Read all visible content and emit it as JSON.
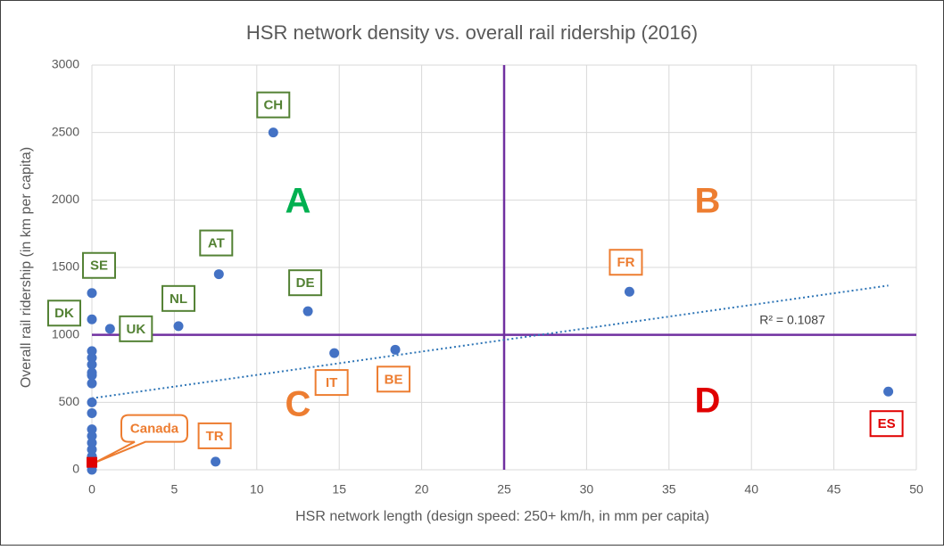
{
  "chart_data": {
    "type": "scatter",
    "title": "HSR network density vs. overall rail ridership (2016)",
    "x_label": "HSR network length (design speed: 250+ km/h, in mm per capita)",
    "y_label": "Overall rail ridership (in km per capita)",
    "xlim": [
      0,
      50
    ],
    "ylim": [
      0,
      3000
    ],
    "xticks": [
      0,
      5,
      10,
      15,
      20,
      25,
      30,
      35,
      40,
      45,
      50
    ],
    "yticks": [
      0,
      500,
      1000,
      1500,
      2000,
      2500,
      3000
    ],
    "grid": true,
    "color": "#4472c4",
    "points": {
      "x": [
        0,
        0,
        0,
        0,
        0,
        0,
        0,
        0,
        0,
        0,
        0,
        0,
        0,
        0,
        0
      ],
      "y": [
        880,
        830,
        780,
        720,
        700,
        640,
        500,
        420,
        300,
        250,
        200,
        150,
        100,
        50,
        0
      ]
    },
    "labeled_points": [
      {
        "label": "CH",
        "x": 11.0,
        "y": 2500,
        "label_color": "#548235"
      },
      {
        "label": "AT",
        "x": 7.7,
        "y": 1450,
        "label_color": "#548235"
      },
      {
        "label": "SE",
        "x": 0,
        "y": 1310,
        "label_color": "#548235"
      },
      {
        "label": "DK",
        "x": 0,
        "y": 1115,
        "label_color": "#548235"
      },
      {
        "label": "UK",
        "x": 1.1,
        "y": 1045,
        "label_color": "#548235"
      },
      {
        "label": "NL",
        "x": 5.25,
        "y": 1065,
        "label_color": "#548235"
      },
      {
        "label": "DE",
        "x": 13.1,
        "y": 1175,
        "label_color": "#548235"
      },
      {
        "label": "IT",
        "x": 14.7,
        "y": 865,
        "label_color": "#ed7d31"
      },
      {
        "label": "BE",
        "x": 18.4,
        "y": 890,
        "label_color": "#ed7d31"
      },
      {
        "label": "FR",
        "x": 32.6,
        "y": 1320,
        "label_color": "#ed7d31"
      },
      {
        "label": "ES",
        "x": 48.3,
        "y": 580,
        "label_color": "#e00000"
      },
      {
        "label": "TR",
        "x": 7.5,
        "y": 60,
        "label_color": "#ed7d31"
      },
      {
        "label": "Canada",
        "x": 0,
        "y": 55,
        "label_color": "#ed7d31",
        "marker": "square",
        "marker_color": "#e00000"
      }
    ],
    "reference_lines": {
      "x": 25,
      "y": 1000,
      "color": "#7030a0"
    },
    "trendline": {
      "intercept": 530,
      "slope": 17.3,
      "label": "R² = 0.1087",
      "color": "#2e75b6"
    },
    "quadrants": [
      {
        "label": "A",
        "color": "#00b050"
      },
      {
        "label": "B",
        "color": "#ed7d31"
      },
      {
        "label": "C",
        "color": "#ed7d31"
      },
      {
        "label": "D",
        "color": "#e00000"
      }
    ]
  }
}
